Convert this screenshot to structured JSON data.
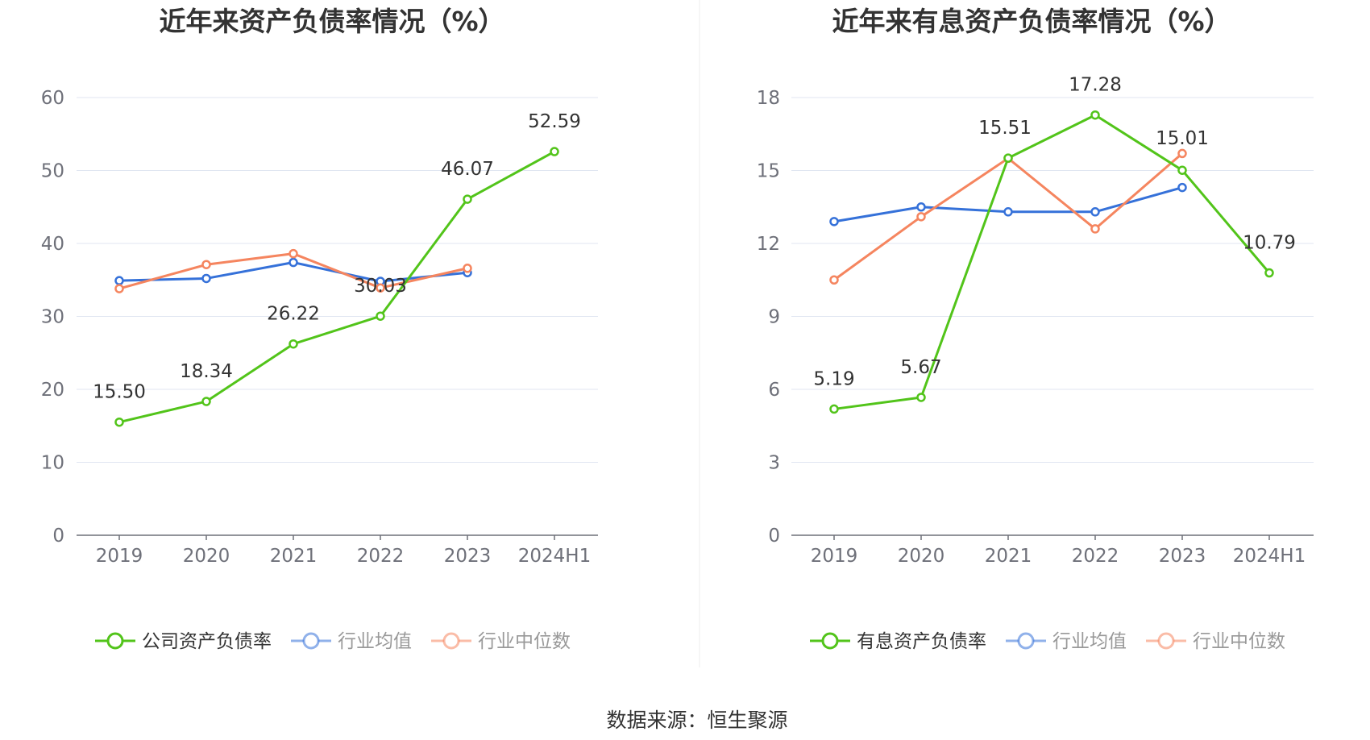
{
  "footer": {
    "source": "数据来源：恒生聚源"
  },
  "colors": {
    "company": "#52c41a",
    "avg": "#3571d9",
    "median": "#f5855f",
    "grid": "#e0e6f1",
    "axis": "#6e7079",
    "divider": "#eeeeee"
  },
  "chart_data": [
    {
      "type": "line",
      "title": "近年来资产负债率情况（%）",
      "categories": [
        "2019",
        "2020",
        "2021",
        "2022",
        "2023",
        "2024H1"
      ],
      "ylim": [
        0,
        60
      ],
      "yticks": [
        "0",
        "10",
        "20",
        "30",
        "40",
        "50",
        "60"
      ],
      "legend_position": "bottom",
      "series": [
        {
          "name": "公司资产负债率",
          "color_key": "company",
          "labeled": true,
          "values": [
            15.5,
            18.34,
            26.22,
            30.03,
            46.07,
            52.59
          ],
          "labels": [
            "15.50",
            "18.34",
            "26.22",
            "30.03",
            "46.07",
            "52.59"
          ]
        },
        {
          "name": "行业均值",
          "color_key": "avg",
          "labeled": false,
          "values": [
            34.9,
            35.2,
            37.4,
            34.8,
            36.0,
            null
          ]
        },
        {
          "name": "行业中位数",
          "color_key": "median",
          "labeled": false,
          "values": [
            33.8,
            37.1,
            38.6,
            33.9,
            36.6,
            null
          ]
        }
      ]
    },
    {
      "type": "line",
      "title": "近年来有息资产负债率情况（%）",
      "categories": [
        "2019",
        "2020",
        "2021",
        "2022",
        "2023",
        "2024H1"
      ],
      "ylim": [
        0,
        18
      ],
      "yticks": [
        "0",
        "3",
        "6",
        "9",
        "12",
        "15",
        "18"
      ],
      "legend_position": "bottom",
      "series": [
        {
          "name": "有息资产负债率",
          "color_key": "company",
          "labeled": true,
          "values": [
            5.19,
            5.67,
            15.51,
            17.28,
            15.01,
            10.79
          ],
          "labels": [
            "5.19",
            "5.67",
            "15.51",
            "17.28",
            "15.01",
            "10.79"
          ]
        },
        {
          "name": "行业均值",
          "color_key": "avg",
          "labeled": false,
          "values": [
            12.9,
            13.5,
            13.3,
            13.3,
            14.3,
            null
          ]
        },
        {
          "name": "行业中位数",
          "color_key": "median",
          "labeled": false,
          "values": [
            10.5,
            13.1,
            15.5,
            12.6,
            15.7,
            null
          ]
        }
      ]
    }
  ]
}
